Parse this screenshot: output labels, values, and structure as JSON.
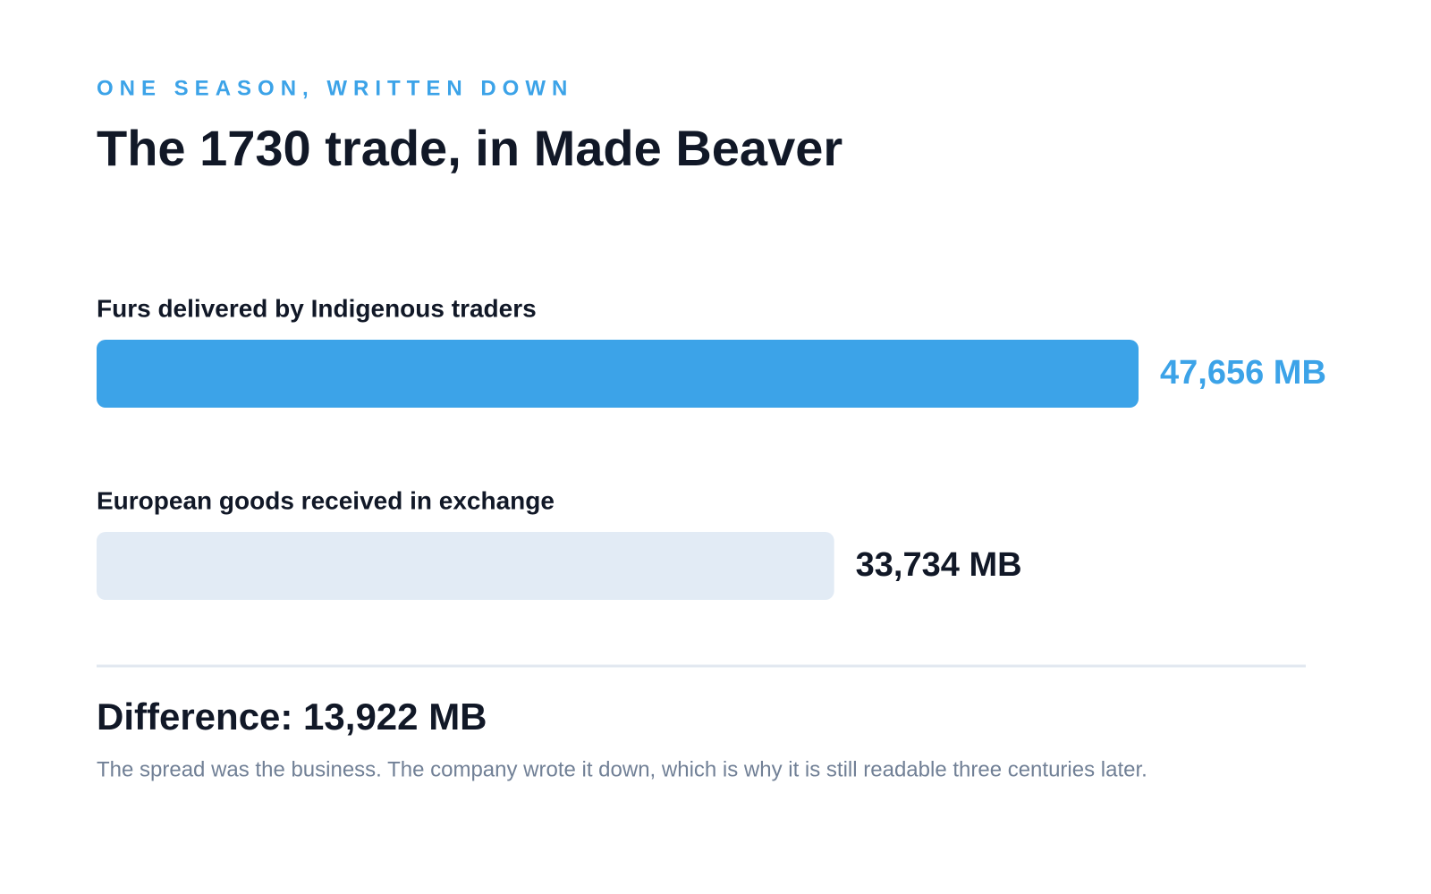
{
  "chart_data": {
    "type": "hbar",
    "kicker": "ONE SEASON, WRITTEN DOWN",
    "title": "The 1730 trade, in Made Beaver",
    "categories": [
      "Furs delivered by Indigenous traders",
      "European goods received in exchange"
    ],
    "values": [
      47656,
      33734
    ],
    "value_labels": [
      "47,656 MB",
      "33,734 MB"
    ],
    "colors": [
      "#3ca3e8",
      "#e2ebf5"
    ],
    "summary": "Difference: 13,922 MB",
    "note": "The spread was the business. The company wrote it down, which is why it is still readable three centuries later."
  }
}
